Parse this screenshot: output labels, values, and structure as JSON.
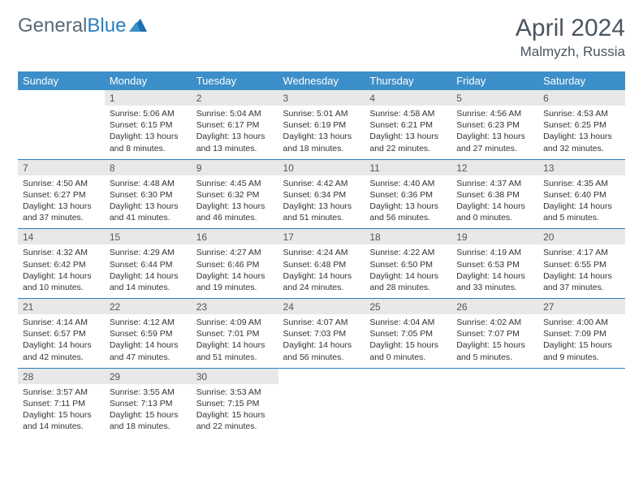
{
  "brand": {
    "part1": "General",
    "part2": "Blue"
  },
  "title": "April 2024",
  "location": "Malmyzh, Russia",
  "colors": {
    "header_bg": "#3d8fc9",
    "divider": "#2a7fbf",
    "daynum_bg": "#e8e8e8",
    "text": "#333333",
    "title_text": "#4a5560"
  },
  "days_of_week": [
    "Sunday",
    "Monday",
    "Tuesday",
    "Wednesday",
    "Thursday",
    "Friday",
    "Saturday"
  ],
  "weeks": [
    {
      "nums": [
        "",
        "1",
        "2",
        "3",
        "4",
        "5",
        "6"
      ],
      "cells": [
        null,
        {
          "sr": "Sunrise: 5:06 AM",
          "ss": "Sunset: 6:15 PM",
          "d1": "Daylight: 13 hours",
          "d2": "and 8 minutes."
        },
        {
          "sr": "Sunrise: 5:04 AM",
          "ss": "Sunset: 6:17 PM",
          "d1": "Daylight: 13 hours",
          "d2": "and 13 minutes."
        },
        {
          "sr": "Sunrise: 5:01 AM",
          "ss": "Sunset: 6:19 PM",
          "d1": "Daylight: 13 hours",
          "d2": "and 18 minutes."
        },
        {
          "sr": "Sunrise: 4:58 AM",
          "ss": "Sunset: 6:21 PM",
          "d1": "Daylight: 13 hours",
          "d2": "and 22 minutes."
        },
        {
          "sr": "Sunrise: 4:56 AM",
          "ss": "Sunset: 6:23 PM",
          "d1": "Daylight: 13 hours",
          "d2": "and 27 minutes."
        },
        {
          "sr": "Sunrise: 4:53 AM",
          "ss": "Sunset: 6:25 PM",
          "d1": "Daylight: 13 hours",
          "d2": "and 32 minutes."
        }
      ]
    },
    {
      "nums": [
        "7",
        "8",
        "9",
        "10",
        "11",
        "12",
        "13"
      ],
      "cells": [
        {
          "sr": "Sunrise: 4:50 AM",
          "ss": "Sunset: 6:27 PM",
          "d1": "Daylight: 13 hours",
          "d2": "and 37 minutes."
        },
        {
          "sr": "Sunrise: 4:48 AM",
          "ss": "Sunset: 6:30 PM",
          "d1": "Daylight: 13 hours",
          "d2": "and 41 minutes."
        },
        {
          "sr": "Sunrise: 4:45 AM",
          "ss": "Sunset: 6:32 PM",
          "d1": "Daylight: 13 hours",
          "d2": "and 46 minutes."
        },
        {
          "sr": "Sunrise: 4:42 AM",
          "ss": "Sunset: 6:34 PM",
          "d1": "Daylight: 13 hours",
          "d2": "and 51 minutes."
        },
        {
          "sr": "Sunrise: 4:40 AM",
          "ss": "Sunset: 6:36 PM",
          "d1": "Daylight: 13 hours",
          "d2": "and 56 minutes."
        },
        {
          "sr": "Sunrise: 4:37 AM",
          "ss": "Sunset: 6:38 PM",
          "d1": "Daylight: 14 hours",
          "d2": "and 0 minutes."
        },
        {
          "sr": "Sunrise: 4:35 AM",
          "ss": "Sunset: 6:40 PM",
          "d1": "Daylight: 14 hours",
          "d2": "and 5 minutes."
        }
      ]
    },
    {
      "nums": [
        "14",
        "15",
        "16",
        "17",
        "18",
        "19",
        "20"
      ],
      "cells": [
        {
          "sr": "Sunrise: 4:32 AM",
          "ss": "Sunset: 6:42 PM",
          "d1": "Daylight: 14 hours",
          "d2": "and 10 minutes."
        },
        {
          "sr": "Sunrise: 4:29 AM",
          "ss": "Sunset: 6:44 PM",
          "d1": "Daylight: 14 hours",
          "d2": "and 14 minutes."
        },
        {
          "sr": "Sunrise: 4:27 AM",
          "ss": "Sunset: 6:46 PM",
          "d1": "Daylight: 14 hours",
          "d2": "and 19 minutes."
        },
        {
          "sr": "Sunrise: 4:24 AM",
          "ss": "Sunset: 6:48 PM",
          "d1": "Daylight: 14 hours",
          "d2": "and 24 minutes."
        },
        {
          "sr": "Sunrise: 4:22 AM",
          "ss": "Sunset: 6:50 PM",
          "d1": "Daylight: 14 hours",
          "d2": "and 28 minutes."
        },
        {
          "sr": "Sunrise: 4:19 AM",
          "ss": "Sunset: 6:53 PM",
          "d1": "Daylight: 14 hours",
          "d2": "and 33 minutes."
        },
        {
          "sr": "Sunrise: 4:17 AM",
          "ss": "Sunset: 6:55 PM",
          "d1": "Daylight: 14 hours",
          "d2": "and 37 minutes."
        }
      ]
    },
    {
      "nums": [
        "21",
        "22",
        "23",
        "24",
        "25",
        "26",
        "27"
      ],
      "cells": [
        {
          "sr": "Sunrise: 4:14 AM",
          "ss": "Sunset: 6:57 PM",
          "d1": "Daylight: 14 hours",
          "d2": "and 42 minutes."
        },
        {
          "sr": "Sunrise: 4:12 AM",
          "ss": "Sunset: 6:59 PM",
          "d1": "Daylight: 14 hours",
          "d2": "and 47 minutes."
        },
        {
          "sr": "Sunrise: 4:09 AM",
          "ss": "Sunset: 7:01 PM",
          "d1": "Daylight: 14 hours",
          "d2": "and 51 minutes."
        },
        {
          "sr": "Sunrise: 4:07 AM",
          "ss": "Sunset: 7:03 PM",
          "d1": "Daylight: 14 hours",
          "d2": "and 56 minutes."
        },
        {
          "sr": "Sunrise: 4:04 AM",
          "ss": "Sunset: 7:05 PM",
          "d1": "Daylight: 15 hours",
          "d2": "and 0 minutes."
        },
        {
          "sr": "Sunrise: 4:02 AM",
          "ss": "Sunset: 7:07 PM",
          "d1": "Daylight: 15 hours",
          "d2": "and 5 minutes."
        },
        {
          "sr": "Sunrise: 4:00 AM",
          "ss": "Sunset: 7:09 PM",
          "d1": "Daylight: 15 hours",
          "d2": "and 9 minutes."
        }
      ]
    },
    {
      "nums": [
        "28",
        "29",
        "30",
        "",
        "",
        "",
        ""
      ],
      "cells": [
        {
          "sr": "Sunrise: 3:57 AM",
          "ss": "Sunset: 7:11 PM",
          "d1": "Daylight: 15 hours",
          "d2": "and 14 minutes."
        },
        {
          "sr": "Sunrise: 3:55 AM",
          "ss": "Sunset: 7:13 PM",
          "d1": "Daylight: 15 hours",
          "d2": "and 18 minutes."
        },
        {
          "sr": "Sunrise: 3:53 AM",
          "ss": "Sunset: 7:15 PM",
          "d1": "Daylight: 15 hours",
          "d2": "and 22 minutes."
        },
        null,
        null,
        null,
        null
      ]
    }
  ]
}
